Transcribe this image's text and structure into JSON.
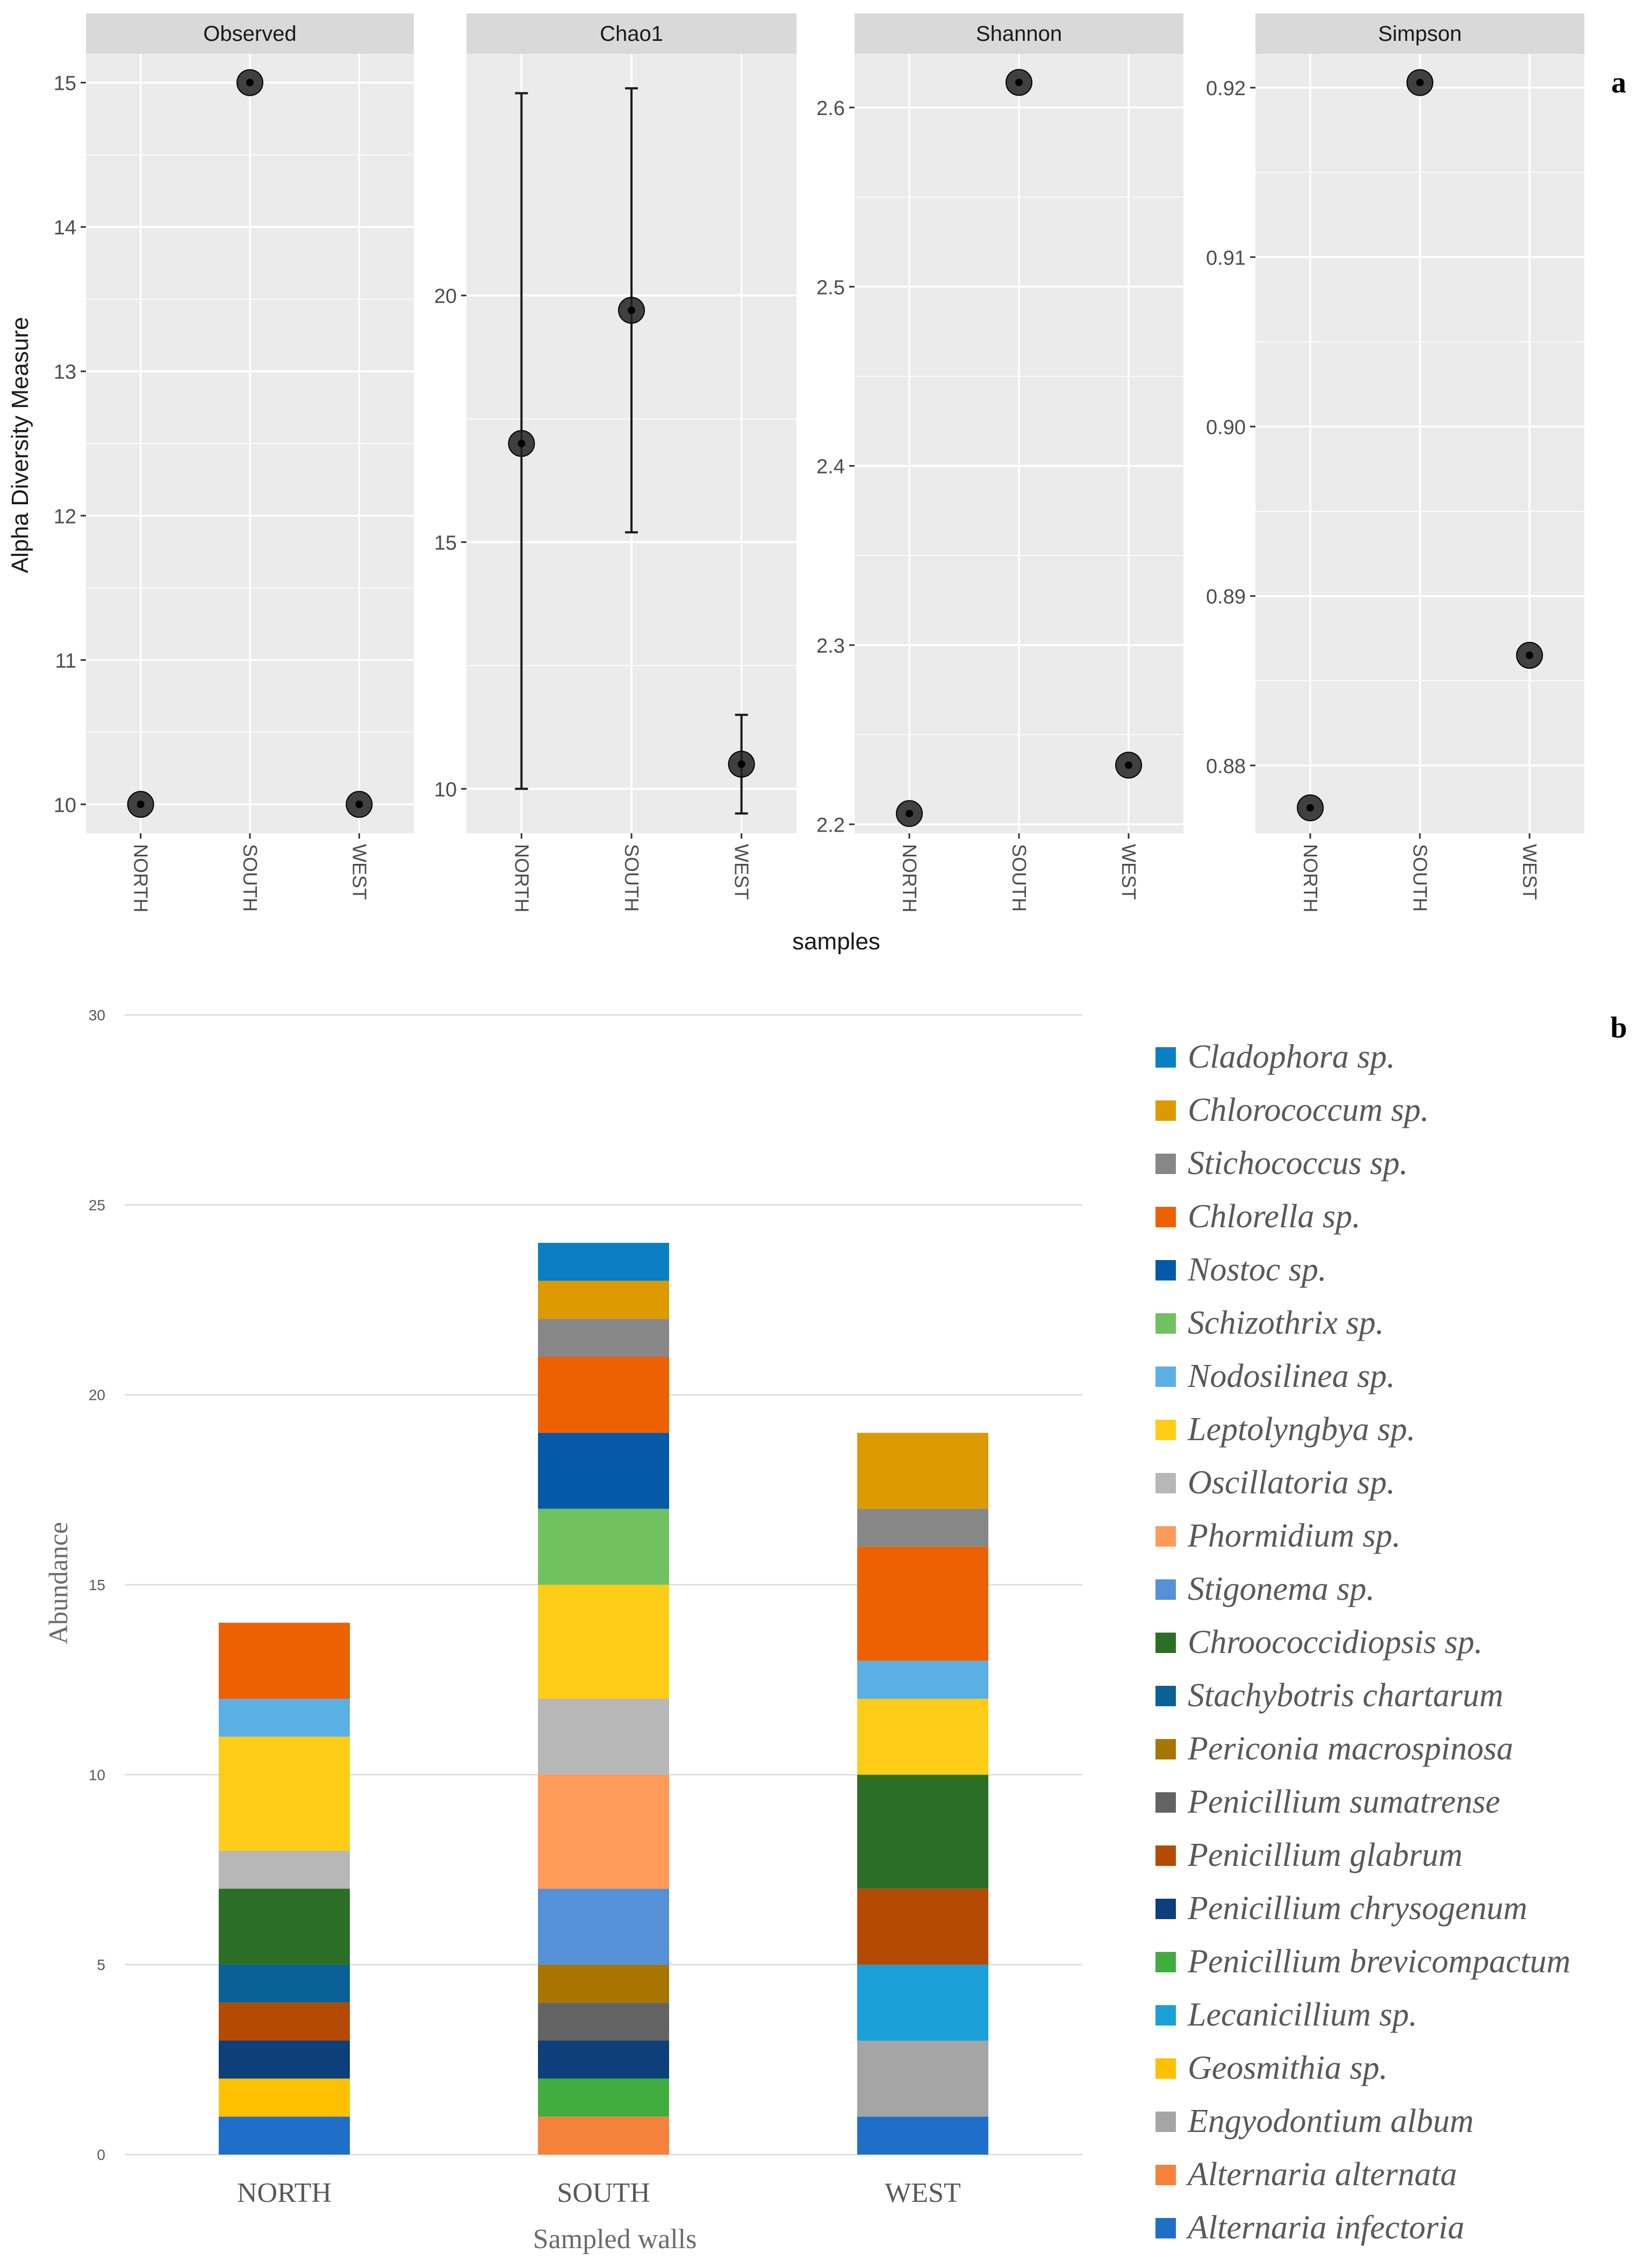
{
  "panel_labels": {
    "a": "a",
    "b": "b"
  },
  "colors": {
    "panel_bg": "#ebebeb",
    "grid": "#ffffff",
    "strip": "#d9d9d9",
    "point": "#1a1a1a"
  },
  "chart_data": [
    {
      "type": "scatter",
      "ylabel": "Alpha Diversity Measure",
      "xlabel": "samples",
      "categories": [
        "NORTH",
        "SOUTH",
        "WEST"
      ],
      "panels": [
        {
          "name": "Observed",
          "ylim": [
            9.8,
            15.2
          ],
          "yticks": [
            10,
            11,
            12,
            13,
            14,
            15
          ],
          "ytick_labels": [
            "10",
            "11",
            "12",
            "13",
            "14",
            "15"
          ],
          "values": [
            10,
            15,
            10
          ],
          "errors": null
        },
        {
          "name": "Chao1",
          "ylim": [
            9.1,
            24.9
          ],
          "yticks": [
            10,
            15,
            20
          ],
          "ytick_labels": [
            "10",
            "15",
            "20"
          ],
          "values": [
            17,
            19.7,
            10.5
          ],
          "errors": [
            [
              10,
              24.1
            ],
            [
              15.2,
              24.2
            ],
            [
              9.5,
              11.5
            ]
          ]
        },
        {
          "name": "Shannon",
          "ylim": [
            2.195,
            2.63
          ],
          "yticks": [
            2.2,
            2.3,
            2.4,
            2.5,
            2.6
          ],
          "ytick_labels": [
            "2.2",
            "2.3",
            "2.4",
            "2.5",
            "2.6"
          ],
          "values": [
            2.206,
            2.614,
            2.233
          ],
          "errors": null
        },
        {
          "name": "Simpson",
          "ylim": [
            0.876,
            0.922
          ],
          "yticks": [
            0.88,
            0.89,
            0.9,
            0.91,
            0.92
          ],
          "ytick_labels": [
            "0.88",
            "0.89",
            "0.90",
            "0.91",
            "0.92"
          ],
          "values": [
            0.8775,
            0.9203,
            0.8865
          ],
          "errors": null
        }
      ]
    },
    {
      "type": "bar",
      "stacked": true,
      "xlabel": "Sampled walls",
      "ylabel": "Abundance",
      "ylim": [
        0,
        30
      ],
      "yticks": [
        0,
        5,
        10,
        15,
        20,
        25,
        30
      ],
      "ytick_labels": [
        "0",
        "5",
        "10",
        "15",
        "20",
        "25",
        "30"
      ],
      "categories": [
        "NORTH",
        "SOUTH",
        "WEST"
      ],
      "series": [
        {
          "name": "Alternaria infectoria",
          "color": "#1f6fc9",
          "values": [
            1,
            0,
            1
          ]
        },
        {
          "name": "Alternaria alternata",
          "color": "#f5823a",
          "values": [
            0,
            1,
            0
          ]
        },
        {
          "name": "Engyodontium album",
          "color": "#a5a5a5",
          "values": [
            0,
            0,
            2
          ]
        },
        {
          "name": "Geosmithia sp.",
          "color": "#ffc000",
          "values": [
            1,
            0,
            0
          ]
        },
        {
          "name": "Lecanicillium sp.",
          "color": "#1ba0d9",
          "values": [
            0,
            0,
            2
          ]
        },
        {
          "name": "Penicillium brevicompactum",
          "color": "#3fae3f",
          "values": [
            0,
            1,
            0
          ]
        },
        {
          "name": "Penicillium chrysogenum",
          "color": "#0d3f7a",
          "values": [
            1,
            1,
            0
          ]
        },
        {
          "name": "Penicillium glabrum",
          "color": "#b54a03",
          "values": [
            1,
            0,
            2
          ]
        },
        {
          "name": "Penicillium sumatrense",
          "color": "#636363",
          "values": [
            0,
            1,
            0
          ]
        },
        {
          "name": "Periconia macrospinosa",
          "color": "#a87600",
          "values": [
            0,
            1,
            0
          ]
        },
        {
          "name": "Stachybotris chartarum",
          "color": "#0a6196",
          "values": [
            1,
            0,
            0
          ]
        },
        {
          "name": "Chroococcidiopsis sp.",
          "color": "#2a6f25",
          "values": [
            2,
            0,
            3
          ]
        },
        {
          "name": "Stigonema sp.",
          "color": "#5690d6",
          "values": [
            0,
            2,
            0
          ]
        },
        {
          "name": "Phormidium  sp.",
          "color": "#ff9a59",
          "values": [
            0,
            3,
            0
          ]
        },
        {
          "name": "Oscillatoria sp.",
          "color": "#b7b7b7",
          "values": [
            1,
            2,
            0
          ]
        },
        {
          "name": "Leptolyngbya sp.",
          "color": "#ffcc17",
          "values": [
            3,
            3,
            2
          ]
        },
        {
          "name": "Nodosilinea sp.",
          "color": "#5bb0e3",
          "values": [
            1,
            0,
            1
          ]
        },
        {
          "name": "Schizothrix sp.",
          "color": "#70c160",
          "values": [
            0,
            2,
            0
          ]
        },
        {
          "name": "Nostoc sp.",
          "color": "#0659a9",
          "values": [
            0,
            2,
            0
          ]
        },
        {
          "name": "Chlorella sp.",
          "color": "#ee6100",
          "values": [
            2,
            2,
            3
          ]
        },
        {
          "name": "Stichococcus sp.",
          "color": "#878787",
          "values": [
            0,
            1,
            1
          ]
        },
        {
          "name": "Chlorococcum sp.",
          "color": "#dc9a00",
          "values": [
            0,
            1,
            2
          ]
        },
        {
          "name": "Cladophora sp.",
          "color": "#0a7fc4",
          "values": [
            0,
            1,
            0
          ]
        }
      ]
    }
  ]
}
